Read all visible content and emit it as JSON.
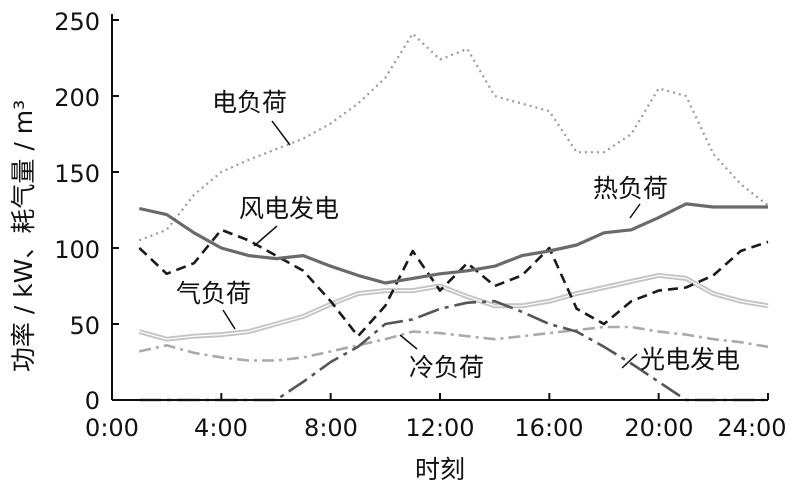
{
  "chart_data": {
    "type": "line",
    "xlabel": "时刻",
    "ylabel": "功率 / kW、耗气量 / m³",
    "xlim": [
      0,
      24
    ],
    "ylim": [
      0,
      250
    ],
    "x_ticks": [
      "0:00",
      "4:00",
      "8:00",
      "12:00",
      "16:00",
      "20:00",
      "24:00"
    ],
    "y_ticks": [
      "0",
      "50",
      "100",
      "150",
      "200",
      "250"
    ],
    "grid": false,
    "legend": "inline labels",
    "x": [
      1,
      2,
      3,
      4,
      5,
      6,
      7,
      8,
      9,
      10,
      11,
      12,
      13,
      14,
      15,
      16,
      17,
      18,
      19,
      20,
      21,
      22,
      23,
      24
    ],
    "series": [
      {
        "name": "电负荷",
        "style": "dotted",
        "color": "#9a9a9a",
        "width": 2.2,
        "values": [
          105,
          112,
          135,
          150,
          158,
          165,
          172,
          182,
          195,
          212,
          241,
          224,
          231,
          200,
          195,
          190,
          163,
          163,
          175,
          205,
          200,
          162,
          142,
          128
        ]
      },
      {
        "name": "热负荷",
        "style": "solid",
        "color": "#6a6a6a",
        "width": 3.2,
        "values": [
          126,
          122,
          110,
          100,
          95,
          93,
          95,
          88,
          82,
          77,
          80,
          83,
          85,
          88,
          95,
          98,
          102,
          110,
          112,
          120,
          129,
          127,
          127,
          127
        ]
      },
      {
        "name": "风电发电",
        "style": "dashed",
        "color": "#1a1a1a",
        "width": 2.6,
        "values": [
          100,
          83,
          90,
          112,
          105,
          95,
          85,
          65,
          42,
          62,
          98,
          72,
          90,
          75,
          82,
          100,
          60,
          50,
          65,
          72,
          74,
          82,
          98,
          104
        ]
      },
      {
        "name": "气负荷",
        "style": "double",
        "color": "#c4c4c4",
        "width": 5,
        "values": [
          45,
          40,
          42,
          43,
          45,
          50,
          55,
          63,
          70,
          72,
          72,
          75,
          68,
          62,
          62,
          65,
          70,
          74,
          78,
          82,
          80,
          70,
          65,
          62
        ]
      },
      {
        "name": "冷负荷",
        "style": "dashdot",
        "color": "#aaaaaa",
        "width": 2.6,
        "values": [
          32,
          36,
          31,
          28,
          26,
          26,
          28,
          32,
          36,
          40,
          45,
          44,
          42,
          40,
          42,
          44,
          46,
          48,
          48,
          45,
          43,
          40,
          38,
          35
        ]
      },
      {
        "name": "光电发电",
        "style": "longdashdot",
        "color": "#555555",
        "width": 2.6,
        "values": [
          0,
          0,
          0,
          0,
          0,
          0,
          12,
          25,
          35,
          50,
          53,
          60,
          64,
          65,
          58,
          50,
          45,
          35,
          24,
          12,
          0,
          0,
          0,
          0
        ]
      }
    ]
  },
  "labels": {
    "elec": "电负荷",
    "heat": "热负荷",
    "wind": "风电发电",
    "gas": "气负荷",
    "cool": "冷负荷",
    "pv": "光电发电"
  }
}
